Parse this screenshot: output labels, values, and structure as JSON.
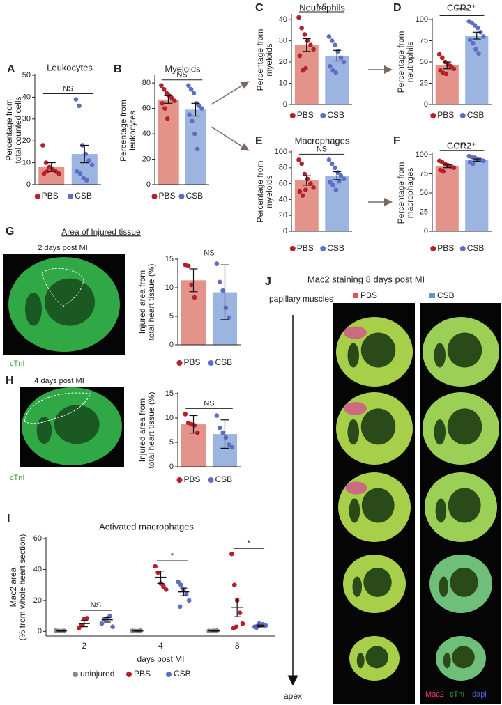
{
  "chart_data": [
    {
      "type": "bar",
      "panel": "A",
      "title": "Leukocytes",
      "ylabel": [
        "Percentage from",
        "total counted cells"
      ],
      "ylim": [
        0,
        50
      ],
      "yticks": [
        0,
        10,
        20,
        30,
        40,
        50
      ],
      "categories": [
        "PBS",
        "CSB"
      ],
      "colors": [
        "#e3938a",
        "#9bb4e0"
      ],
      "point_colors": [
        "#b5202a",
        "#5f6ec4"
      ],
      "values": [
        8,
        14
      ],
      "errors": [
        2,
        4
      ],
      "points": [
        [
          18,
          10,
          8,
          7,
          6,
          5,
          5,
          6
        ],
        [
          39,
          36,
          18,
          14,
          11,
          9,
          6,
          5,
          3,
          2
        ]
      ],
      "significance": "NS"
    },
    {
      "type": "bar",
      "panel": "B",
      "title": "Myeloids",
      "ylabel": [
        "Percentage from",
        "leukocytes"
      ],
      "ylim": [
        0,
        85
      ],
      "yticks": [
        0,
        20,
        40,
        60,
        80
      ],
      "categories": [
        "PBS",
        "CSB"
      ],
      "colors": [
        "#e3938a",
        "#9bb4e0"
      ],
      "point_colors": [
        "#b5202a",
        "#5f6ec4"
      ],
      "values": [
        67,
        59
      ],
      "errors": [
        3,
        5
      ],
      "points": [
        [
          78,
          75,
          72,
          70,
          68,
          66,
          64,
          60,
          52
        ],
        [
          78,
          75,
          72,
          64,
          62,
          60,
          55,
          50,
          40,
          28
        ]
      ],
      "significance": "NS"
    },
    {
      "type": "bar",
      "panel": "C",
      "title": "Neutrophils",
      "ylabel": [
        "Percentage from",
        "myeloids"
      ],
      "ylim": [
        0,
        42
      ],
      "yticks": [
        0,
        10,
        20,
        30,
        40
      ],
      "categories": [
        "PBS",
        "CSB"
      ],
      "colors": [
        "#e3938a",
        "#9bb4e0"
      ],
      "point_colors": [
        "#b5202a",
        "#5f6ec4"
      ],
      "values": [
        28,
        23
      ],
      "errors": [
        3,
        2.5
      ],
      "points": [
        [
          41,
          36,
          33,
          30,
          28,
          26,
          23,
          16,
          17
        ],
        [
          32,
          30,
          28,
          25,
          22,
          20,
          18,
          16,
          15
        ]
      ],
      "significance": "NS"
    },
    {
      "type": "bar",
      "panel": "D",
      "title": "CCR2⁺",
      "ylabel": [
        "Percentage from",
        "neutrophils"
      ],
      "ylim": [
        0,
        100
      ],
      "yticks": [
        0,
        25,
        50,
        75,
        100
      ],
      "categories": [
        "PBS",
        "CSB"
      ],
      "colors": [
        "#e3938a",
        "#9bb4e0"
      ],
      "point_colors": [
        "#b5202a",
        "#5f6ec4"
      ],
      "values": [
        46,
        81
      ],
      "errors": [
        4,
        4
      ],
      "points": [
        [
          59,
          55,
          50,
          47,
          45,
          42,
          40,
          37,
          36
        ],
        [
          98,
          96,
          93,
          90,
          85,
          80,
          76,
          72,
          65,
          60
        ]
      ],
      "significance": "****"
    },
    {
      "type": "bar",
      "panel": "E",
      "title": "Macrophages",
      "ylabel": [
        "Percentage from",
        "myeloids"
      ],
      "ylim": [
        0,
        100
      ],
      "yticks": [
        0,
        20,
        40,
        60,
        80,
        100
      ],
      "categories": [
        "PBS",
        "CSB"
      ],
      "colors": [
        "#e3938a",
        "#9bb4e0"
      ],
      "point_colors": [
        "#b5202a",
        "#5f6ec4"
      ],
      "values": [
        64,
        70
      ],
      "errors": [
        6,
        5
      ],
      "points": [
        [
          90,
          85,
          72,
          66,
          60,
          55,
          50,
          45,
          52
        ],
        [
          90,
          85,
          80,
          74,
          70,
          66,
          62,
          58,
          52,
          63
        ]
      ],
      "significance": "NS"
    },
    {
      "type": "bar",
      "panel": "F",
      "title": "CCR2⁺",
      "ylabel": [
        "Percentage from",
        "macrophages"
      ],
      "ylim": [
        0,
        100
      ],
      "yticks": [
        0,
        25,
        50,
        75,
        100
      ],
      "categories": [
        "PBS",
        "CSB"
      ],
      "colors": [
        "#e3938a",
        "#9bb4e0"
      ],
      "point_colors": [
        "#b5202a",
        "#5f6ec4"
      ],
      "values": [
        85,
        93
      ],
      "errors": [
        2,
        1.5
      ],
      "points": [
        [
          92,
          90,
          88,
          86,
          85,
          83,
          80,
          78
        ],
        [
          98,
          97,
          96,
          94,
          93,
          92,
          90,
          88
        ]
      ],
      "significance": "***"
    },
    {
      "type": "bar",
      "ylabel": [
        "Injured area from",
        "total heart tissue (%)"
      ],
      "ylim": [
        0,
        15
      ],
      "yticks": [
        0,
        5,
        10,
        15
      ],
      "categories": [
        "PBS",
        "CSB"
      ],
      "colors": [
        "#e3938a",
        "#9bb4e0"
      ],
      "point_colors": [
        "#b5202a",
        "#5f6ec4"
      ],
      "values": [
        11.3,
        9.2
      ],
      "errors": [
        2,
        4.8
      ],
      "points": [
        [
          14,
          13.8,
          10.5,
          8.3
        ],
        [
          14.2,
          11,
          9.5,
          6.5,
          4.8
        ]
      ],
      "significance": "NS"
    },
    {
      "type": "bar",
      "ylabel": [
        "Injured area from",
        "total heart tissue (%)"
      ],
      "ylim": [
        0,
        15
      ],
      "yticks": [
        0,
        5,
        10,
        15
      ],
      "categories": [
        "PBS",
        "CSB"
      ],
      "colors": [
        "#e3938a",
        "#9bb4e0"
      ],
      "point_colors": [
        "#b5202a",
        "#5f6ec4"
      ],
      "values": [
        8.7,
        6.7
      ],
      "errors": [
        1.8,
        2.9
      ],
      "points": [
        [
          10.8,
          9,
          8.7,
          8.5,
          7
        ],
        [
          10.5,
          8,
          7,
          6,
          4.5,
          4
        ]
      ],
      "significance": "NS"
    },
    {
      "type": "dot",
      "panel": "I",
      "title": "Activated macrophages",
      "ylabel": [
        "Mac2 area",
        "(% from whole heart section)"
      ],
      "xlabel": "days post MI",
      "ylim": [
        -3,
        60
      ],
      "yticks": [
        0,
        20,
        40,
        60
      ],
      "categories": [
        "2",
        "4",
        "8"
      ],
      "significance": [
        "NS",
        "*",
        "*"
      ],
      "series": [
        {
          "name": "uninjured",
          "color": "#888888",
          "values": [
            0.3,
            0.3,
            0.3
          ],
          "errors": [
            0.2,
            0.2,
            0.2
          ],
          "points": [
            [
              0.5,
              0.3,
              0.2,
              0.4
            ],
            [
              0.4,
              0.3,
              0.2,
              0.5
            ],
            [
              0.3,
              0.2,
              0.4,
              0.5
            ]
          ]
        },
        {
          "name": "PBS",
          "color": "#b5202a",
          "values": [
            5,
            35,
            15.5
          ],
          "errors": [
            2,
            4,
            6
          ],
          "points": [
            [
              2,
              4,
              8,
              8.5
            ],
            [
              42,
              38,
              31,
              29,
              27
            ],
            [
              50,
              30,
              20,
              12,
              5,
              2,
              3
            ]
          ]
        },
        {
          "name": "CSB",
          "color": "#5f6ec4",
          "values": [
            7.5,
            25.5,
            3.5
          ],
          "errors": [
            1.5,
            2.5,
            0.6
          ],
          "points": [
            [
              5,
              8,
              8.5,
              10,
              3
            ],
            [
              32,
              30,
              27,
              24,
              20,
              16
            ],
            [
              3,
              3.5,
              4,
              4.5,
              3.8,
              2.5,
              5
            ]
          ]
        }
      ]
    }
  ],
  "figure": {
    "G": {
      "panel": "G",
      "heading": "Area of Injured tissue",
      "image_label": "2 days post MI",
      "stain": "cTnI"
    },
    "H": {
      "panel": "H",
      "image_label": "4 days post MI",
      "stain": "cTnI"
    },
    "J": {
      "panel": "J",
      "title": "Mac2 staining 8 days post MI",
      "groups": [
        "PBS",
        "CSB"
      ],
      "top": "papillary muscles",
      "bottom": "apex",
      "stains": [
        "Mac2",
        "cTnI",
        "dapi"
      ]
    }
  }
}
